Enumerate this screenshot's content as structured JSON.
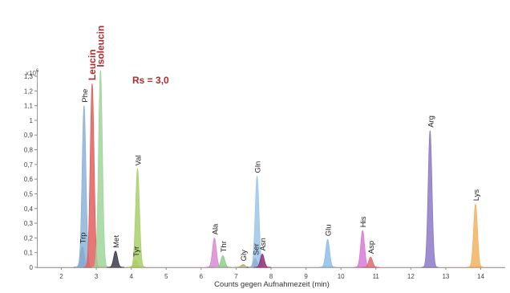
{
  "chart_data": {
    "type": "line",
    "title": "",
    "xlabel": "Counts gegen Aufnahmezeit (min)",
    "ylabel": "",
    "y_multiplier": "x10",
    "y_exponent": "6",
    "xlim": [
      1.3,
      14.7
    ],
    "ylim": [
      0,
      1.3
    ],
    "x_ticks": [
      2,
      3,
      4,
      5,
      6,
      7,
      8,
      9,
      10,
      11,
      12,
      13,
      14
    ],
    "y_ticks": [
      {
        "v": 0,
        "label": "0"
      },
      {
        "v": 0.1,
        "label": "0,1"
      },
      {
        "v": 0.2,
        "label": "0,2"
      },
      {
        "v": 0.3,
        "label": "0,3"
      },
      {
        "v": 0.4,
        "label": "0,4"
      },
      {
        "v": 0.5,
        "label": "0,5"
      },
      {
        "v": 0.6,
        "label": "0,6"
      },
      {
        "v": 0.7,
        "label": "0,7"
      },
      {
        "v": 0.8,
        "label": "0,8"
      },
      {
        "v": 0.9,
        "label": "0,9"
      },
      {
        "v": 1.0,
        "label": "1"
      },
      {
        "v": 1.1,
        "label": "1,1"
      },
      {
        "v": 1.2,
        "label": "1,2"
      },
      {
        "v": 1.3,
        "label": "1,3"
      }
    ],
    "grid": false,
    "annotation": "Rs = 3,0",
    "annotation_color": "#b22a2e",
    "highlight_color": "#b22a2e",
    "peaks": [
      {
        "name": "Trp",
        "rt": 2.6,
        "height": 0.14,
        "color": "#5a7da3",
        "highlight": false
      },
      {
        "name": "Phe",
        "rt": 2.65,
        "height": 1.1,
        "color": "#8db3d8",
        "highlight": false
      },
      {
        "name": "Leucin",
        "rt": 2.88,
        "height": 1.25,
        "color": "#e05f5f",
        "highlight": true
      },
      {
        "name": "Isoleucin",
        "rt": 3.12,
        "height": 1.34,
        "color": "#9fd59a",
        "highlight": true
      },
      {
        "name": "Met",
        "rt": 3.55,
        "height": 0.11,
        "color": "#3a3a4a",
        "highlight": false
      },
      {
        "name": "Tyr",
        "rt": 4.12,
        "height": 0.05,
        "color": "#c9c44a",
        "highlight": false
      },
      {
        "name": "Val",
        "rt": 4.18,
        "height": 0.67,
        "color": "#a8d06a",
        "highlight": false
      },
      {
        "name": "Ala",
        "rt": 6.38,
        "height": 0.2,
        "color": "#d78bd3",
        "highlight": false
      },
      {
        "name": "Thr",
        "rt": 6.62,
        "height": 0.08,
        "color": "#8fce8a",
        "highlight": false
      },
      {
        "name": "Gly",
        "rt": 7.2,
        "height": 0.02,
        "color": "#b5b07a",
        "highlight": false
      },
      {
        "name": "Ser",
        "rt": 7.55,
        "height": 0.06,
        "color": "#3c3c6e",
        "highlight": false
      },
      {
        "name": "Gln",
        "rt": 7.6,
        "height": 0.62,
        "color": "#9ec6ea",
        "highlight": false
      },
      {
        "name": "Asn",
        "rt": 7.75,
        "height": 0.09,
        "color": "#8f2f73",
        "highlight": false
      },
      {
        "name": "Glu",
        "rt": 9.62,
        "height": 0.19,
        "color": "#8dbfe6",
        "highlight": false
      },
      {
        "name": "His",
        "rt": 10.62,
        "height": 0.25,
        "color": "#d77ad6",
        "highlight": false
      },
      {
        "name": "Asp",
        "rt": 10.85,
        "height": 0.07,
        "color": "#e06a6a",
        "highlight": false
      },
      {
        "name": "Arg",
        "rt": 12.55,
        "height": 0.93,
        "color": "#8b7ac8",
        "highlight": false
      },
      {
        "name": "Lys",
        "rt": 13.85,
        "height": 0.43,
        "color": "#f2b360",
        "highlight": false
      }
    ]
  }
}
